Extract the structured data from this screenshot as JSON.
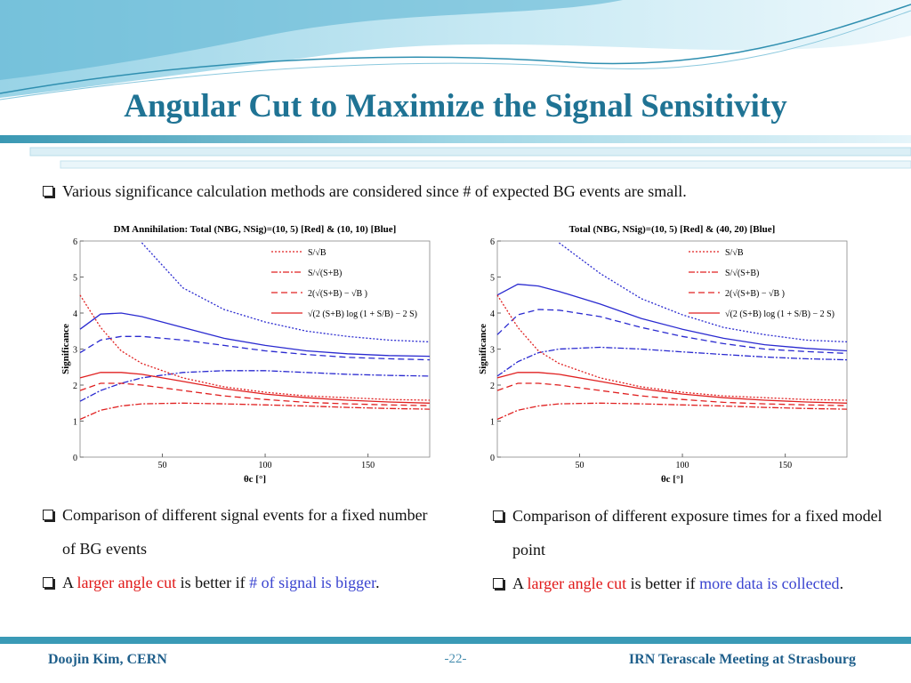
{
  "header": {
    "title": "Angular Cut to Maximize the Signal Sensitivity"
  },
  "intro": [
    {
      "text": "Various significance calculation methods are considered since # of expected BG events are small."
    }
  ],
  "chart_data": [
    {
      "type": "line",
      "title": "DM Annihilation: Total (NBG, NSig)=(10, 5) [Red] & (10, 10) [Blue]",
      "xlabel": "θc [°]",
      "ylabel": "Significance",
      "xlim": [
        10,
        180
      ],
      "ylim": [
        0,
        6
      ],
      "xticks": [
        50,
        100,
        150
      ],
      "yticks": [
        0,
        1,
        2,
        3,
        4,
        5,
        6
      ],
      "legend": [
        {
          "name": "S/√B",
          "dash": "dotted"
        },
        {
          "name": "S/√(S+B)",
          "dash": "dashdot"
        },
        {
          "name": "2(√(S+B) − √B )",
          "dash": "dashed"
        },
        {
          "name": "√(2 (S+B) log (1 + S/B) − 2 S)",
          "dash": "solid"
        }
      ],
      "legend_color": "#e02020",
      "x": [
        10,
        20,
        30,
        40,
        60,
        80,
        100,
        120,
        140,
        160,
        180
      ],
      "series": [
        {
          "color": "#2a2ad0",
          "dash": "dotted",
          "values": [
            null,
            null,
            null,
            5.95,
            4.7,
            4.1,
            3.75,
            3.5,
            3.35,
            3.25,
            3.2
          ]
        },
        {
          "color": "#2a2ad0",
          "dash": "dashdot",
          "values": [
            1.55,
            1.85,
            2.05,
            2.2,
            2.35,
            2.4,
            2.4,
            2.35,
            2.3,
            2.27,
            2.25
          ]
        },
        {
          "color": "#2a2ad0",
          "dash": "dashed",
          "values": [
            2.9,
            3.25,
            3.35,
            3.35,
            3.25,
            3.1,
            2.95,
            2.85,
            2.77,
            2.73,
            2.7
          ]
        },
        {
          "color": "#2a2ad0",
          "dash": "solid",
          "values": [
            3.55,
            3.97,
            4.0,
            3.9,
            3.6,
            3.3,
            3.1,
            2.95,
            2.87,
            2.82,
            2.8
          ]
        },
        {
          "color": "#e02020",
          "dash": "dotted",
          "values": [
            4.5,
            3.6,
            2.95,
            2.6,
            2.2,
            1.95,
            1.8,
            1.7,
            1.65,
            1.6,
            1.58
          ]
        },
        {
          "color": "#e02020",
          "dash": "dashdot",
          "values": [
            1.05,
            1.3,
            1.42,
            1.48,
            1.5,
            1.48,
            1.45,
            1.42,
            1.38,
            1.35,
            1.33
          ]
        },
        {
          "color": "#e02020",
          "dash": "dashed",
          "values": [
            1.85,
            2.05,
            2.05,
            2.0,
            1.85,
            1.7,
            1.6,
            1.52,
            1.48,
            1.45,
            1.43
          ]
        },
        {
          "color": "#e02020",
          "dash": "solid",
          "values": [
            2.2,
            2.35,
            2.35,
            2.3,
            2.1,
            1.9,
            1.75,
            1.65,
            1.58,
            1.53,
            1.5
          ]
        }
      ]
    },
    {
      "type": "line",
      "title": "Total (NBG, NSig)=(10, 5) [Red] & (40, 20) [Blue]",
      "xlabel": "θc [°]",
      "ylabel": "Significance",
      "xlim": [
        10,
        180
      ],
      "ylim": [
        0,
        6
      ],
      "xticks": [
        50,
        100,
        150
      ],
      "yticks": [
        0,
        1,
        2,
        3,
        4,
        5,
        6
      ],
      "legend": [
        {
          "name": "S/√B",
          "dash": "dotted"
        },
        {
          "name": "S/√(S+B)",
          "dash": "dashdot"
        },
        {
          "name": "2(√(S+B) − √B )",
          "dash": "dashed"
        },
        {
          "name": "√(2 (S+B) log (1 + S/B) − 2 S)",
          "dash": "solid"
        }
      ],
      "legend_color": "#e02020",
      "x": [
        10,
        20,
        30,
        40,
        60,
        80,
        100,
        120,
        140,
        160,
        180
      ],
      "series": [
        {
          "color": "#2a2ad0",
          "dash": "dotted",
          "values": [
            null,
            null,
            null,
            5.95,
            5.1,
            4.4,
            3.95,
            3.6,
            3.4,
            3.25,
            3.2
          ]
        },
        {
          "color": "#2a2ad0",
          "dash": "dashdot",
          "values": [
            2.25,
            2.65,
            2.9,
            3.0,
            3.05,
            3.0,
            2.92,
            2.85,
            2.78,
            2.73,
            2.7
          ]
        },
        {
          "color": "#2a2ad0",
          "dash": "dashed",
          "values": [
            3.4,
            3.95,
            4.1,
            4.08,
            3.9,
            3.6,
            3.35,
            3.15,
            3.0,
            2.93,
            2.88
          ]
        },
        {
          "color": "#2a2ad0",
          "dash": "solid",
          "values": [
            4.5,
            4.8,
            4.75,
            4.6,
            4.25,
            3.85,
            3.55,
            3.3,
            3.12,
            3.02,
            2.95
          ]
        },
        {
          "color": "#e02020",
          "dash": "dotted",
          "values": [
            4.5,
            3.6,
            2.95,
            2.6,
            2.2,
            1.95,
            1.8,
            1.7,
            1.65,
            1.6,
            1.58
          ]
        },
        {
          "color": "#e02020",
          "dash": "dashdot",
          "values": [
            1.05,
            1.3,
            1.42,
            1.48,
            1.5,
            1.48,
            1.45,
            1.42,
            1.38,
            1.35,
            1.33
          ]
        },
        {
          "color": "#e02020",
          "dash": "dashed",
          "values": [
            1.85,
            2.05,
            2.05,
            2.0,
            1.85,
            1.7,
            1.6,
            1.52,
            1.48,
            1.45,
            1.43
          ]
        },
        {
          "color": "#e02020",
          "dash": "solid",
          "values": [
            2.2,
            2.35,
            2.35,
            2.3,
            2.1,
            1.9,
            1.75,
            1.65,
            1.58,
            1.53,
            1.5
          ]
        }
      ]
    }
  ],
  "left_bullets": [
    [
      {
        "text": "Comparison of different signal events for a fixed number of BG events"
      }
    ],
    [
      {
        "text": "A "
      },
      {
        "text": "larger angle cut",
        "color": "#e01818"
      },
      {
        "text": " is better if "
      },
      {
        "text": "# of signal is bigger",
        "color": "#3a44d0"
      },
      {
        "text": "."
      }
    ]
  ],
  "right_bullets": [
    [
      {
        "text": "Comparison of different exposure times for a fixed model point"
      }
    ],
    [
      {
        "text": "A "
      },
      {
        "text": "larger angle cut",
        "color": "#e01818"
      },
      {
        "text": " is better if "
      },
      {
        "text": "more data is collected",
        "color": "#3a44d0"
      },
      {
        "text": "."
      }
    ]
  ],
  "footer": {
    "left": "Doojin Kim, CERN",
    "center": "-22-",
    "right": "IRN Terascale Meeting at Strasbourg"
  }
}
